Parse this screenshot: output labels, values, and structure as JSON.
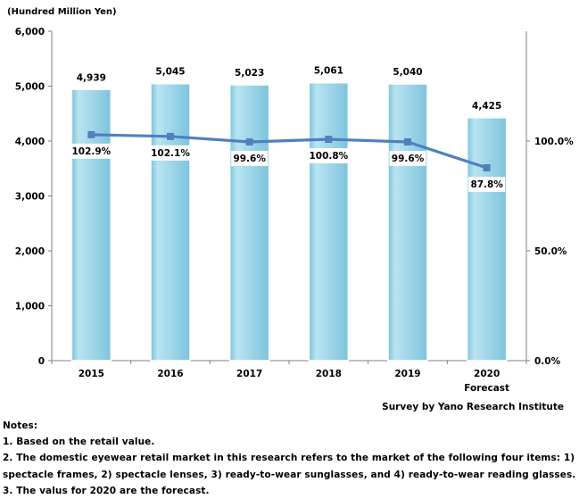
{
  "chart_data": {
    "type": "bar",
    "y_unit_label": "(Hundred Million Yen)",
    "categories": [
      "2015",
      "2016",
      "2017",
      "2018",
      "2019",
      "2020"
    ],
    "category_sublabels": [
      "",
      "",
      "",
      "",
      "",
      "Forecast"
    ],
    "series": [
      {
        "type": "bar",
        "values": [
          4939,
          5045,
          5023,
          5061,
          5040,
          4425
        ],
        "value_labels": [
          "4,939",
          "5,045",
          "5,023",
          "5,061",
          "5,040",
          "4,425"
        ],
        "color": "#a6d9ea"
      },
      {
        "type": "line",
        "axis": "right",
        "values": [
          102.9,
          102.1,
          99.6,
          100.8,
          99.6,
          87.8
        ],
        "value_labels": [
          "102.9%",
          "102.1%",
          "99.6%",
          "100.8%",
          "99.6%",
          "87.8%"
        ],
        "color": "#4f81bd"
      }
    ],
    "ylim": [
      0,
      6000
    ],
    "y_ticks": [
      0,
      1000,
      2000,
      3000,
      4000,
      5000,
      6000
    ],
    "y_tick_labels": [
      "0",
      "1,000",
      "2,000",
      "3,000",
      "4,000",
      "5,000",
      "6,000"
    ],
    "y2lim": [
      0,
      150
    ],
    "y2_ticks": [
      0,
      50,
      100
    ],
    "y2_tick_labels": [
      "0.0%",
      "50.0%",
      "100.0%"
    ],
    "grid": false,
    "source": "Survey by Yano Research Institute"
  },
  "notes": {
    "heading": "Notes:",
    "lines": [
      "1. Based on the retail value.",
      "2. The domestic eyewear retail market in this research refers to the market of the following four items: 1)",
      "spectacle frames, 2) spectacle lenses, 3) ready-to-wear sunglasses, and 4) ready-to-wear reading glasses.",
      "3. The valus for 2020 are the forecast."
    ]
  }
}
